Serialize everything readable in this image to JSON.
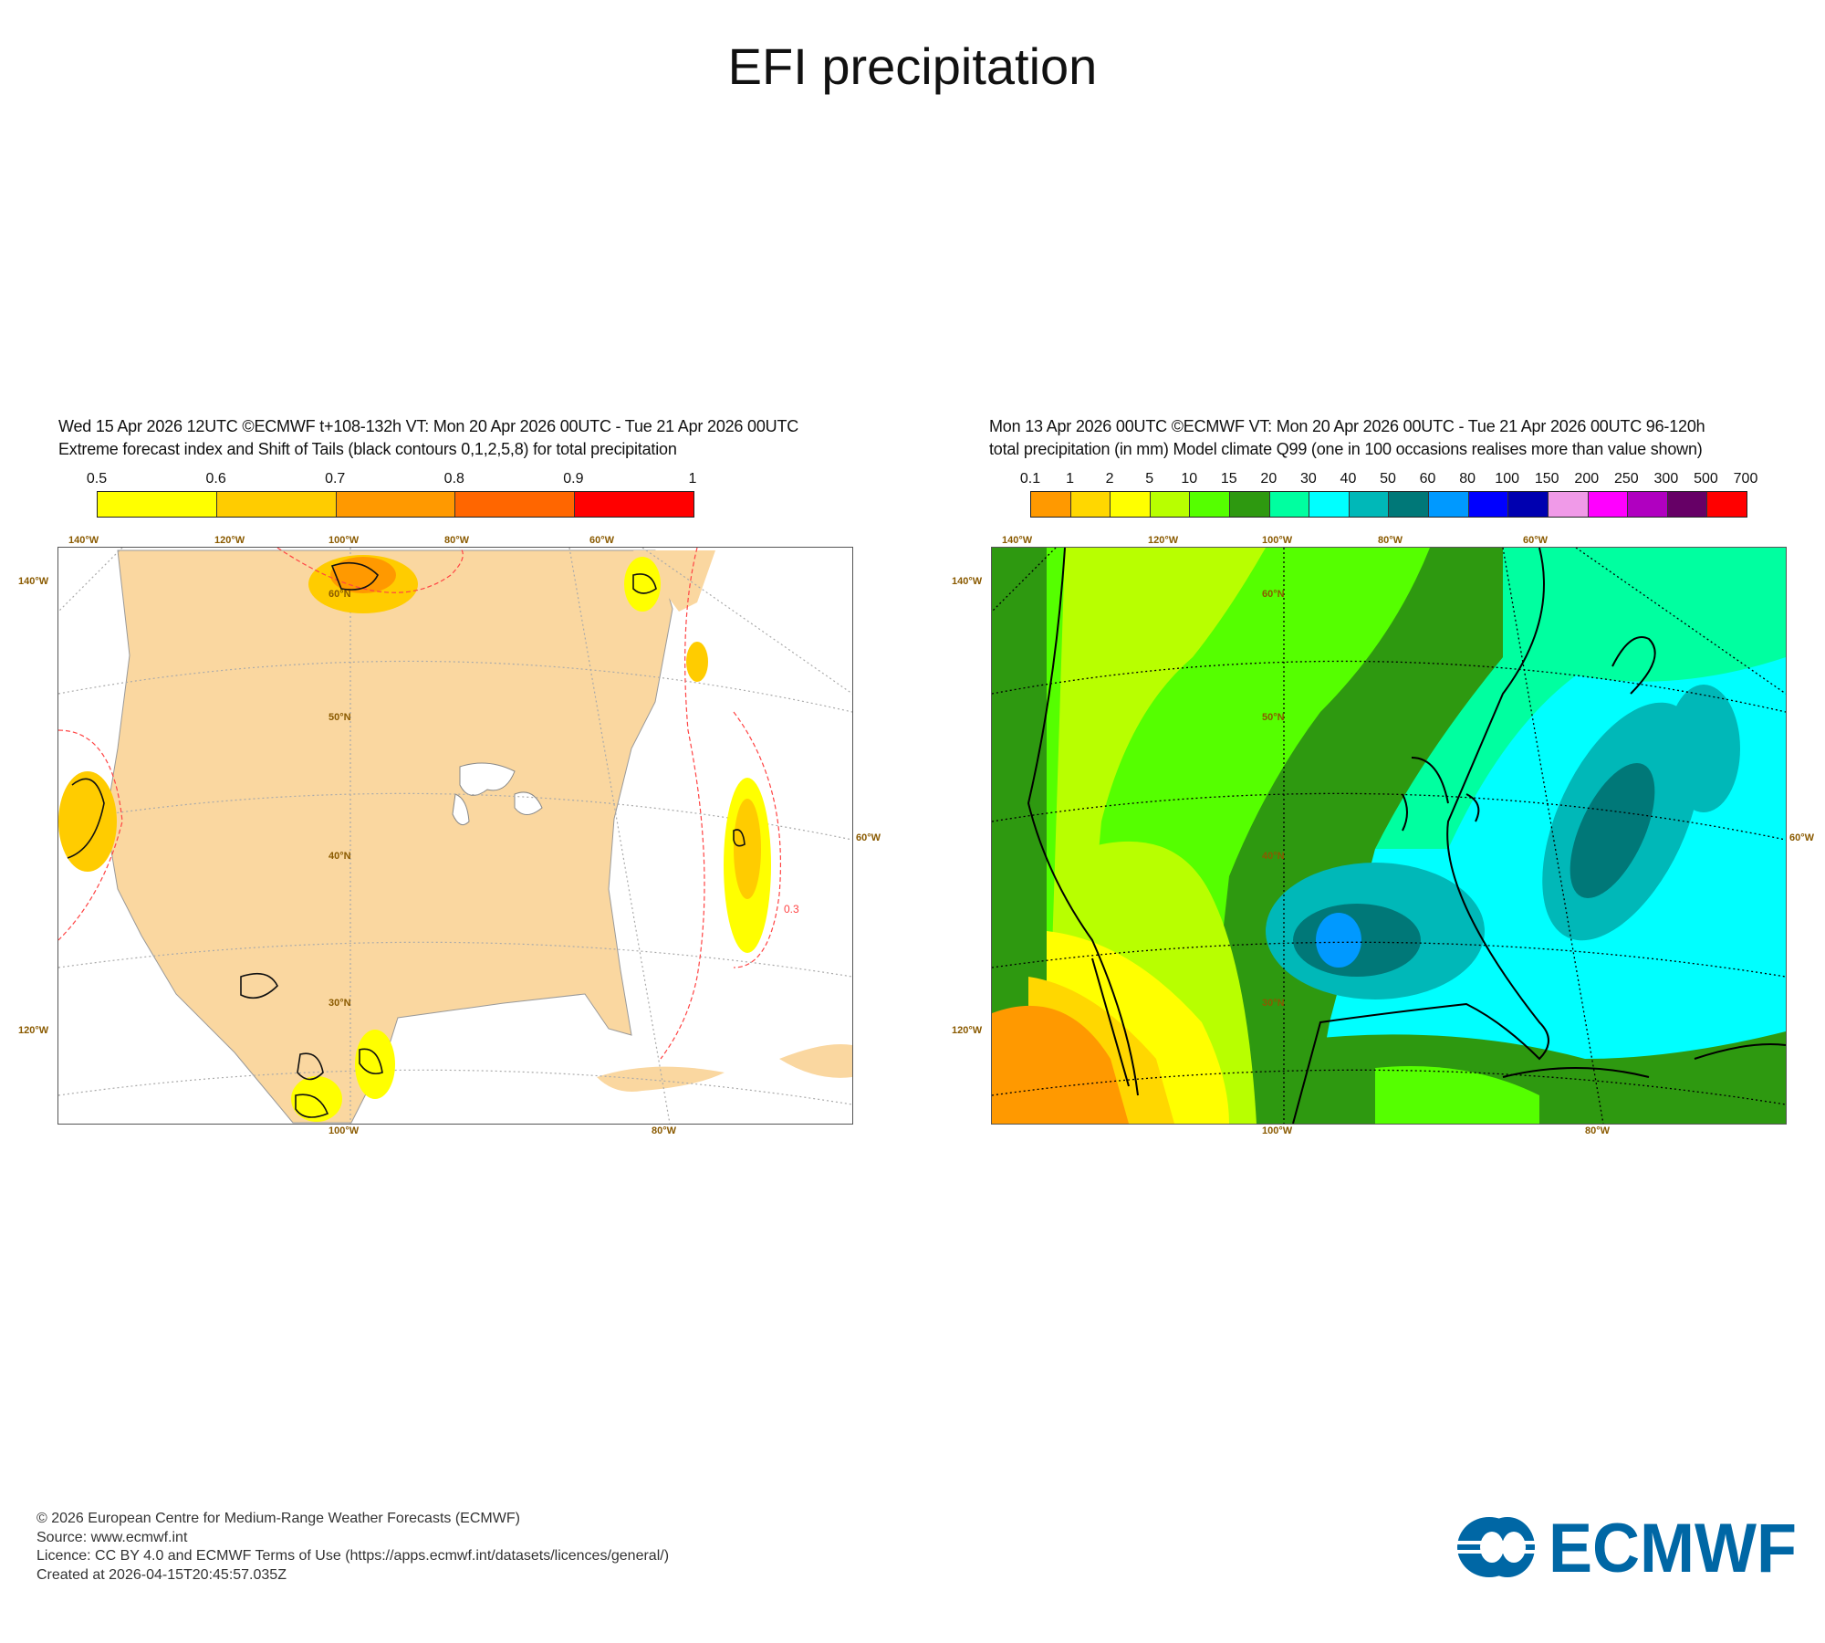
{
  "title": "EFI precipitation",
  "left_panel": {
    "header_line1": "Wed 15 Apr 2026 12UTC ©ECMWF t+108-132h  VT: Mon 20 Apr 2026 00UTC - Tue 21 Apr 2026 00UTC",
    "header_line2": "Extreme forecast index and Shift of Tails (black contours 0,1,2,5,8) for total precipitation",
    "colorbar_labels": [
      "0.5",
      "0.6",
      "0.7",
      "0.8",
      "0.9",
      "1"
    ],
    "colorbar_colors": [
      "#ffff00",
      "#ffcc00",
      "#ff9900",
      "#ff6600",
      "#ff0000"
    ],
    "grid_labels": {
      "top": [
        "140°W",
        "120°W",
        "100°W",
        "80°W",
        "60°W"
      ],
      "left": [
        "140°W",
        "120°W"
      ],
      "right": [
        "60°W"
      ],
      "bottom": [
        "100°W",
        "80°W"
      ],
      "inner": [
        "60°N",
        "50°N",
        "40°N",
        "30°N"
      ]
    },
    "contour_label": "0.3"
  },
  "right_panel": {
    "header_line1": "Mon 13 Apr 2026 00UTC ©ECMWF VT: Mon 20 Apr 2026 00UTC - Tue 21 Apr 2026 00UTC   96-120h",
    "header_line2": "total precipitation (in mm)  Model climate Q99 (one in 100 occasions realises more than value shown)",
    "colorbar_labels": [
      "0.1",
      "1",
      "2",
      "5",
      "10",
      "15",
      "20",
      "30",
      "40",
      "50",
      "60",
      "80",
      "100",
      "150",
      "200",
      "250",
      "300",
      "500",
      "700"
    ],
    "colorbar_colors": [
      "#ff9900",
      "#ffd700",
      "#ffff00",
      "#b8ff00",
      "#55ff00",
      "#2e9910",
      "#00ffa0",
      "#00ffff",
      "#00b8b8",
      "#007878",
      "#0099ff",
      "#0000ff",
      "#0000b0",
      "#f09ae8",
      "#ff00ff",
      "#b000c0",
      "#660066",
      "#ff0000"
    ],
    "grid_labels": {
      "top": [
        "140°W",
        "120°W",
        "100°W",
        "80°W",
        "60°W"
      ],
      "left": [
        "140°W",
        "120°W"
      ],
      "right": [
        "60°W"
      ],
      "bottom": [
        "100°W",
        "80°W"
      ],
      "inner": [
        "60°N",
        "50°N",
        "40°N",
        "30°N"
      ]
    }
  },
  "footer": {
    "line1": "© 2026 European Centre for Medium-Range Weather Forecasts (ECMWF)",
    "line2": "Source: www.ecmwf.int",
    "line3": "Licence: CC BY 4.0 and ECMWF Terms of Use (https://apps.ecmwf.int/datasets/licences/general/)",
    "line4": "Created at 2026-04-15T20:45:57.035Z"
  },
  "logo": {
    "text": "ECMWF",
    "color": "#0067a5"
  }
}
